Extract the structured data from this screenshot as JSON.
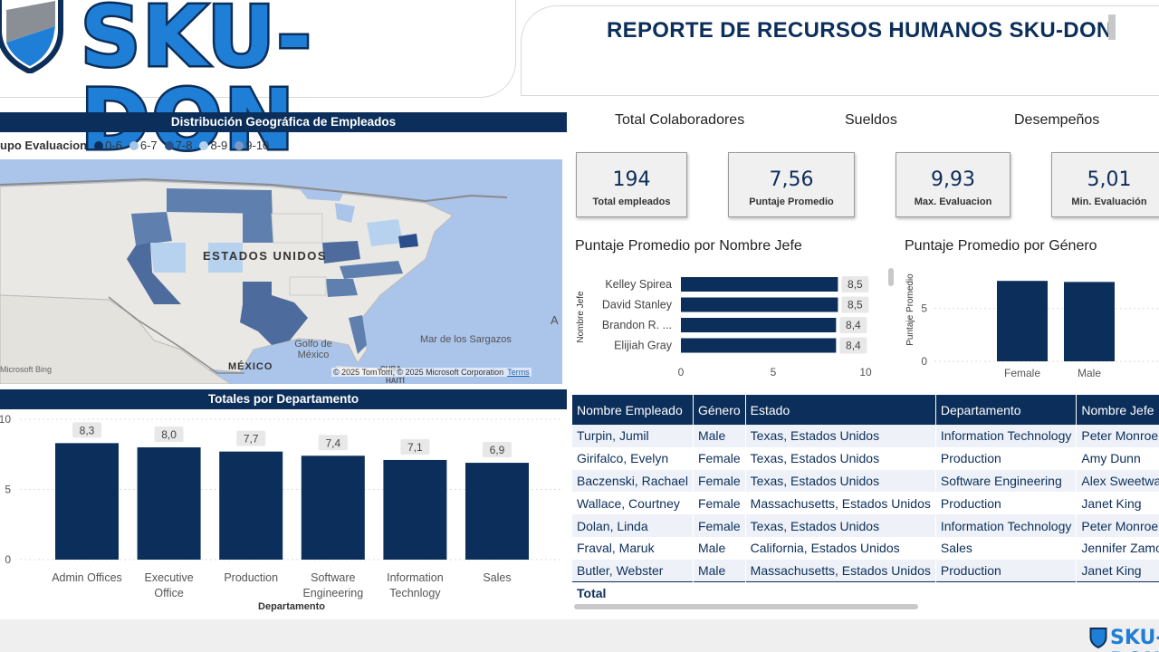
{
  "header": {
    "logo_text": "SKU-DON",
    "report_title": "REPORTE DE RECURSOS HUMANOS SKU-DON"
  },
  "map_section": {
    "title": "Distribución Geográfica de Empleados",
    "legend_title": "upo Evaluacion",
    "legend": [
      {
        "label": "0-6",
        "color": "#0c2e5a"
      },
      {
        "label": "6-7",
        "color": "#a7c7e7"
      },
      {
        "label": "7-8",
        "color": "#2a4f8a"
      },
      {
        "label": "8-9",
        "color": "#b7d2ee"
      },
      {
        "label": "9-10",
        "color": "#7f97bf"
      }
    ],
    "labels": {
      "country": "ESTADOS UNIDOS",
      "gulf": "Golfo de México",
      "mexico": "MÉXICO",
      "sargasso": "Mar de los Sargazos",
      "atlantic": "A",
      "haiti": "HAITÍ",
      "cuba": "CUBA"
    },
    "bing": "Microsoft Bing",
    "attribution": "© 2025 TomTom, © 2025 Microsoft Corporation",
    "terms": "Terms"
  },
  "dept_section": {
    "title": "Totales por Departamento"
  },
  "kpis": {
    "headers": [
      "Total Colaboradores",
      "Sueldos",
      "Desempeños"
    ],
    "cards": [
      {
        "value": "194",
        "label": "Total empleados"
      },
      {
        "value": "7,56",
        "label": "Puntaje Promedio"
      },
      {
        "value": "9,93",
        "label": "Max. Evaluacion"
      },
      {
        "value": "5,01",
        "label": "Min. Evaluación"
      }
    ]
  },
  "chart_titles": {
    "jefe": "Puntaje Promedio por Nombre Jefe",
    "genero": "Puntaje Promedio por Género"
  },
  "table": {
    "columns": [
      "Nombre Empleado",
      "Género",
      "Estado",
      "Departamento",
      "Nombre Jefe"
    ],
    "rows": [
      [
        "Turpin, Jumil",
        "Male",
        "Texas, Estados Unidos",
        "Information Technology",
        "Peter Monroe"
      ],
      [
        "Girifalco, Evelyn",
        "Female",
        "Texas, Estados Unidos",
        "Production",
        "Amy Dunn"
      ],
      [
        "Baczenski, Rachael",
        "Female",
        "Texas, Estados Unidos",
        "Software Engineering",
        "Alex Sweetwater"
      ],
      [
        "Wallace, Courtney",
        "Female",
        "Massachusetts, Estados Unidos",
        "Production",
        "Janet King"
      ],
      [
        "Dolan, Linda",
        "Female",
        "Texas, Estados Unidos",
        "Information Technology",
        "Peter Monroe"
      ],
      [
        "Fraval, Maruk",
        "Male",
        "California, Estados Unidos",
        "Sales",
        "Jennifer Zamora"
      ],
      [
        "Butler, Webster",
        "Male",
        "Massachusetts, Estados Unidos",
        "Production",
        "Janet King"
      ]
    ],
    "total_label": "Total"
  },
  "chart_data": [
    {
      "type": "bar",
      "title": "Totales por Departamento",
      "xlabel": "Departamento",
      "ylabel": "",
      "categories": [
        "Admin Offices",
        "Executive Office",
        "Production",
        "Software Engineering",
        "Information Technlogy",
        "Sales"
      ],
      "values": [
        8.3,
        8.0,
        7.7,
        7.4,
        7.1,
        6.9
      ],
      "value_labels": [
        "8,3",
        "8,0",
        "7,7",
        "7,4",
        "7,1",
        "6,9"
      ],
      "y_ticks": [
        "0",
        "5",
        "10"
      ],
      "ylim": [
        0,
        10
      ],
      "color": "#0c2e5a"
    },
    {
      "type": "bar",
      "orientation": "horizontal",
      "title": "Puntaje Promedio por Nombre Jefe",
      "ylabel": "Nombre Jefe",
      "categories": [
        "Kelley Spirea",
        "David Stanley",
        "Brandon R. ...",
        "Elijiah Gray"
      ],
      "values": [
        8.5,
        8.5,
        8.4,
        8.4
      ],
      "value_labels": [
        "8,5",
        "8,5",
        "8,4",
        "8,4"
      ],
      "x_ticks": [
        "0",
        "5",
        "10"
      ],
      "xlim": [
        0,
        10
      ],
      "color": "#0c2e5a"
    },
    {
      "type": "bar",
      "title": "Puntaje Promedio por Género",
      "ylabel": "Puntaje Promedio",
      "categories": [
        "Female",
        "Male"
      ],
      "values": [
        7.6,
        7.5
      ],
      "y_ticks": [
        "0",
        "5"
      ],
      "ylim": [
        0,
        8.3
      ],
      "color": "#0c2e5a"
    }
  ]
}
